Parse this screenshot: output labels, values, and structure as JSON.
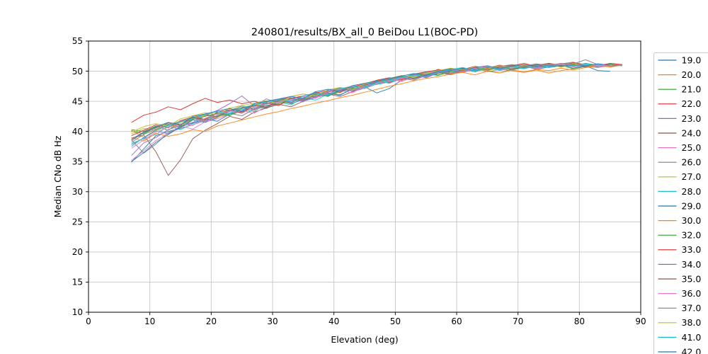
{
  "figure": {
    "background": "#ffffff",
    "spine_color": "#000000",
    "grid_color": "#c6c6c6",
    "legend_border_color": "#cccccc"
  },
  "chart_data": {
    "type": "line",
    "title": "240801/results/BX_all_0 BeiDou L1(BOC-PD)",
    "xlabel": "Elevation (deg)",
    "ylabel": "Median CNo dB Hz",
    "xlim": [
      0,
      90
    ],
    "ylim": [
      10,
      55
    ],
    "xticks": [
      0,
      10,
      20,
      30,
      40,
      50,
      60,
      70,
      80,
      90
    ],
    "yticks": [
      10,
      15,
      20,
      25,
      30,
      35,
      40,
      45,
      50,
      55
    ],
    "grid": true,
    "legend_position": "right-outside-clipped",
    "x": [
      7,
      9,
      11,
      13,
      15,
      17,
      19,
      21,
      23,
      25,
      27,
      29,
      31,
      33,
      35,
      37,
      39,
      41,
      43,
      45,
      47,
      49,
      51,
      53,
      55,
      57,
      59,
      61,
      63,
      65,
      67,
      69,
      71,
      73,
      75,
      77,
      79,
      81,
      83,
      85,
      87
    ],
    "series": [
      {
        "name": "19.0",
        "color": "#1f77b4",
        "y": [
          34.9,
          37.1,
          39.3,
          40.0,
          40.6,
          41.9,
          41.5,
          42.3,
          43.6,
          43.1,
          44.4,
          43.9,
          45.1,
          44.6,
          45.3,
          46.5,
          46.1,
          47.3,
          46.7,
          47.4,
          46.4,
          47.1,
          48.5,
          49.0,
          49.2,
          50.0,
          49.5,
          50.4,
          49.9,
          50.6,
          50.2,
          50.4,
          50.9,
          50.3,
          50.7,
          51.0,
          50.5,
          50.9,
          50.1,
          50.0,
          null
        ]
      },
      {
        "name": "20.0",
        "color": "#ff7f0e",
        "y": [
          40.2,
          39.0,
          40.3,
          41.0,
          40.7,
          42.1,
          41.8,
          42.4,
          42.9,
          43.9,
          43.5,
          44.7,
          44.3,
          45.5,
          45.2,
          45.8,
          46.8,
          46.4,
          47.6,
          47.3,
          48.0,
          48.9,
          48.4,
          49.5,
          49.1,
          50.1,
          49.6,
          50.0,
          50.5,
          49.9,
          50.3,
          50.1,
          49.8,
          50.2,
          49.7,
          50.1,
          50.4,
          50.8,
          50.6,
          51.1,
          50.9
        ]
      },
      {
        "name": "21.0",
        "color": "#2ca02c",
        "y": [
          40.3,
          40.0,
          40.9,
          40.2,
          41.6,
          42.3,
          41.9,
          43.1,
          42.7,
          43.4,
          44.3,
          43.8,
          45.0,
          45.5,
          44.9,
          46.3,
          45.9,
          46.6,
          47.5,
          47.1,
          47.9,
          48.3,
          48.8,
          49.6,
          49.2,
          49.5,
          50.2,
          49.8,
          50.6,
          50.1,
          49.7,
          50.3,
          50.8,
          51.2,
          50.6,
          51.0,
          50.4,
          50.8,
          51.2,
          50.7,
          51.0
        ]
      },
      {
        "name": "22.0",
        "color": "#d62728",
        "y": [
          41.5,
          42.7,
          43.2,
          44.1,
          43.6,
          44.6,
          45.5,
          44.8,
          45.2,
          44.6,
          45.0,
          44.5,
          45.3,
          45.8,
          46.2,
          45.9,
          46.7,
          47.2,
          46.9,
          47.7,
          48.4,
          48.1,
          48.7,
          49.2,
          49.6,
          50.3,
          49.9,
          50.5,
          50.1,
          50.7,
          50.3,
          50.9,
          51.3,
          50.8,
          51.2,
          50.7,
          51.4,
          51.0,
          50.8,
          51.2,
          51.0
        ]
      },
      {
        "name": "23.0",
        "color": "#9467bd",
        "y": [
          37.8,
          38.9,
          40.1,
          39.6,
          40.9,
          41.5,
          42.6,
          43.5,
          44.6,
          45.9,
          44.2,
          45.4,
          44.7,
          45.1,
          45.9,
          46.4,
          46.0,
          46.8,
          47.1,
          47.6,
          48.5,
          48.0,
          48.8,
          49.4,
          48.9,
          49.7,
          50.1,
          50.6,
          50.0,
          50.4,
          50.8,
          50.2,
          50.6,
          51.0,
          51.3,
          50.9,
          51.2,
          50.6,
          51.0,
          50.8,
          51.1
        ]
      },
      {
        "name": "24.0",
        "color": "#8c564b",
        "y": [
          38.9,
          39.4,
          36.6,
          32.7,
          35.3,
          38.8,
          40.2,
          41.3,
          42.5,
          42.0,
          43.2,
          43.9,
          44.5,
          44.1,
          45.0,
          45.6,
          46.2,
          45.8,
          46.6,
          47.2,
          47.9,
          48.4,
          48.8,
          48.5,
          49.3,
          49.8,
          49.4,
          50.0,
          50.4,
          50.1,
          50.6,
          50.3,
          50.7,
          51.0,
          50.6,
          50.9,
          51.1,
          50.7,
          51.0,
          51.0,
          null
        ]
      },
      {
        "name": "25.0",
        "color": "#e377c2",
        "y": [
          35.2,
          36.8,
          38.5,
          39.7,
          40.9,
          40.4,
          41.6,
          42.1,
          42.9,
          43.5,
          43.0,
          44.2,
          44.6,
          45.3,
          45.0,
          45.7,
          46.3,
          46.8,
          46.4,
          47.5,
          47.9,
          48.7,
          48.3,
          49.0,
          49.4,
          49.9,
          50.2,
          49.8,
          50.3,
          50.7,
          50.1,
          50.5,
          50.9,
          50.4,
          50.8,
          51.1,
          50.7,
          51.0,
          50.6,
          50.9,
          null
        ]
      },
      {
        "name": "26.0",
        "color": "#7f7f7f",
        "y": [
          38.6,
          36.4,
          37.9,
          39.8,
          40.5,
          41.1,
          41.8,
          42.5,
          43.0,
          42.6,
          43.7,
          44.1,
          44.6,
          45.0,
          45.4,
          45.9,
          46.4,
          46.1,
          47.0,
          47.4,
          48.1,
          48.5,
          48.9,
          49.2,
          49.7,
          50.0,
          49.6,
          50.1,
          50.5,
          50.2,
          50.7,
          50.4,
          50.8,
          50.5,
          50.9,
          51.2,
          51.5,
          51.0,
          50.7,
          51.0,
          50.9
        ]
      },
      {
        "name": "27.0",
        "color": "#bcbd22",
        "y": [
          39.6,
          40.5,
          40.1,
          41.0,
          41.5,
          42.0,
          42.7,
          42.3,
          43.4,
          43.8,
          44.5,
          44.0,
          45.1,
          44.8,
          45.5,
          46.0,
          46.7,
          47.1,
          46.8,
          47.6,
          48.3,
          48.8,
          49.2,
          48.9,
          49.5,
          50.0,
          50.3,
          49.9,
          50.4,
          50.1,
          50.6,
          50.9,
          50.5,
          50.8,
          51.1,
          50.7,
          51.0,
          51.2,
          50.8,
          51.1,
          51.0
        ]
      },
      {
        "name": "28.0",
        "color": "#17becf",
        "y": [
          38.0,
          38.8,
          39.5,
          40.9,
          40.3,
          41.3,
          42.0,
          42.6,
          43.1,
          43.7,
          43.3,
          44.6,
          44.9,
          44.4,
          45.6,
          45.2,
          46.2,
          46.6,
          47.0,
          47.4,
          47.8,
          48.2,
          48.7,
          49.1,
          49.5,
          49.3,
          49.9,
          50.3,
          50.0,
          50.5,
          50.2,
          50.7,
          50.4,
          50.9,
          50.6,
          51.0,
          50.8,
          51.1,
          50.9,
          51.2,
          51.0
        ]
      },
      {
        "name": "29.0",
        "color": "#1f77b4",
        "y": [
          35.0,
          36.5,
          38.2,
          39.5,
          40.8,
          41.4,
          42.1,
          41.7,
          42.9,
          43.3,
          43.9,
          44.3,
          44.7,
          45.4,
          45.1,
          45.8,
          46.4,
          46.0,
          47.1,
          47.7,
          48.1,
          48.6,
          49.1,
          48.7,
          49.4,
          49.8,
          50.1,
          50.5,
          50.2,
          50.6,
          50.3,
          50.8,
          50.5,
          50.9,
          50.7,
          51.0,
          50.8,
          51.1,
          50.9,
          51.0,
          null
        ]
      },
      {
        "name": "30.0",
        "color": "#ff7f0e",
        "y": [
          39.0,
          38.4,
          39.7,
          39.2,
          39.6,
          40.3,
          40.0,
          40.9,
          41.4,
          41.9,
          42.4,
          42.9,
          43.3,
          43.8,
          44.2,
          44.7,
          45.1,
          45.6,
          46.0,
          46.5,
          47.0,
          47.5,
          47.9,
          48.4,
          48.8,
          49.1,
          49.5,
          49.8,
          49.4,
          50.0,
          49.7,
          50.2,
          49.9,
          50.3,
          50.1,
          50.5,
          50.2,
          50.6,
          50.9,
          50.7,
          51.0
        ]
      },
      {
        "name": "32.0",
        "color": "#2ca02c",
        "y": [
          40.1,
          39.6,
          40.7,
          41.2,
          40.8,
          42.0,
          42.5,
          43.0,
          42.6,
          43.8,
          44.2,
          44.6,
          45.0,
          44.7,
          45.9,
          46.3,
          45.8,
          46.9,
          47.2,
          47.8,
          48.2,
          48.5,
          49.0,
          49.4,
          49.7,
          49.3,
          50.0,
          50.4,
          50.1,
          50.5,
          50.8,
          50.3,
          50.7,
          51.1,
          50.8,
          51.2,
          50.9,
          51.3,
          51.0,
          51.2,
          51.1
        ]
      },
      {
        "name": "33.0",
        "color": "#d62728",
        "y": [
          39.3,
          40.2,
          41.1,
          40.6,
          41.8,
          42.4,
          42.0,
          43.2,
          43.6,
          43.1,
          44.4,
          44.8,
          44.3,
          45.5,
          45.9,
          46.4,
          46.8,
          46.5,
          47.4,
          47.9,
          48.5,
          48.9,
          48.6,
          49.5,
          49.9,
          50.2,
          49.7,
          50.3,
          50.8,
          50.5,
          51.0,
          50.6,
          51.1,
          50.8,
          51.3,
          51.0,
          51.4,
          51.1,
          50.9,
          51.3,
          51.1
        ]
      },
      {
        "name": "34.0",
        "color": "#9467bd",
        "y": [
          36.0,
          38.1,
          39.0,
          40.3,
          41.0,
          42.2,
          41.6,
          42.7,
          43.3,
          44.0,
          43.6,
          44.9,
          45.2,
          44.8,
          45.6,
          46.2,
          46.6,
          47.0,
          46.7,
          47.5,
          48.0,
          48.4,
          48.9,
          49.3,
          49.0,
          49.8,
          50.2,
          49.9,
          50.4,
          50.8,
          50.5,
          50.9,
          50.6,
          51.0,
          50.7,
          51.1,
          50.8,
          51.2,
          51.0,
          51.1,
          null
        ]
      },
      {
        "name": "35.0",
        "color": "#8c564b",
        "y": [
          38.5,
          39.8,
          40.6,
          41.4,
          41.0,
          42.3,
          42.8,
          42.4,
          43.5,
          43.9,
          44.4,
          44.0,
          45.2,
          45.6,
          45.3,
          46.0,
          46.5,
          47.0,
          47.3,
          47.7,
          48.3,
          48.7,
          49.2,
          48.8,
          49.6,
          50.0,
          50.4,
          50.1,
          50.6,
          50.2,
          50.7,
          51.0,
          50.6,
          51.0,
          51.2,
          50.8,
          51.1,
          50.9,
          51.2,
          51.0,
          51.0
        ]
      },
      {
        "name": "36.0",
        "color": "#e377c2",
        "y": [
          37.2,
          38.6,
          39.9,
          40.7,
          41.3,
          41.0,
          42.2,
          42.9,
          43.4,
          43.0,
          44.1,
          44.5,
          44.9,
          45.3,
          45.8,
          45.5,
          46.6,
          47.0,
          47.4,
          47.1,
          48.0,
          48.4,
          48.8,
          49.2,
          49.6,
          49.9,
          50.3,
          50.0,
          50.5,
          50.8,
          50.4,
          50.7,
          51.0,
          50.6,
          50.9,
          51.2,
          50.8,
          51.1,
          50.9,
          51.0,
          null
        ]
      },
      {
        "name": "37.0",
        "color": "#7f7f7f",
        "y": [
          38.2,
          39.5,
          40.4,
          41.1,
          41.7,
          42.2,
          41.9,
          43.0,
          43.5,
          44.2,
          43.8,
          44.7,
          45.1,
          45.5,
          45.2,
          46.1,
          46.7,
          47.2,
          46.9,
          47.8,
          48.2,
          48.7,
          49.0,
          49.4,
          49.8,
          50.1,
          49.7,
          50.2,
          50.6,
          50.3,
          50.8,
          51.1,
          50.9,
          51.2,
          51.0,
          51.3,
          51.2,
          51.9,
          51.1,
          51.0,
          null
        ]
      },
      {
        "name": "38.0",
        "color": "#bcbd22",
        "y": [
          39.9,
          40.8,
          41.3,
          40.9,
          42.1,
          42.6,
          43.1,
          42.8,
          43.9,
          44.3,
          44.7,
          45.1,
          44.6,
          45.8,
          46.2,
          45.9,
          46.9,
          47.3,
          47.0,
          47.9,
          48.4,
          48.8,
          49.3,
          49.0,
          49.7,
          50.1,
          50.5,
          50.2,
          50.7,
          50.4,
          50.9,
          50.6,
          51.0,
          50.7,
          51.1,
          50.8,
          51.2,
          50.9,
          51.1,
          51.0,
          null
        ]
      },
      {
        "name": "41.0",
        "color": "#17becf",
        "y": [
          37.5,
          39.0,
          40.2,
          41.0,
          41.6,
          42.1,
          42.8,
          43.3,
          42.9,
          44.0,
          44.4,
          44.9,
          45.3,
          45.0,
          45.9,
          46.4,
          46.0,
          47.1,
          47.5,
          47.2,
          48.1,
          48.5,
          49.0,
          49.4,
          49.1,
          49.9,
          50.3,
          50.6,
          50.1,
          50.7,
          50.3,
          50.8,
          50.5,
          50.9,
          50.7,
          51.1,
          50.9,
          51.2,
          51.0,
          51.1,
          51.0
        ]
      },
      {
        "name": "42.0",
        "color": "#1f77b4",
        "y": [
          38.7,
          39.9,
          40.8,
          41.5,
          41.1,
          42.5,
          42.9,
          43.4,
          43.8,
          43.4,
          44.6,
          45.0,
          45.4,
          45.8,
          45.5,
          46.6,
          47.0,
          46.7,
          47.6,
          48.0,
          48.4,
          48.8,
          49.2,
          49.6,
          49.3,
          50.0,
          50.4,
          50.1,
          50.6,
          50.9,
          50.4,
          50.8,
          51.1,
          50.7,
          51.0,
          50.8,
          51.1,
          50.9,
          51.2,
          51.0,
          null
        ]
      }
    ]
  }
}
